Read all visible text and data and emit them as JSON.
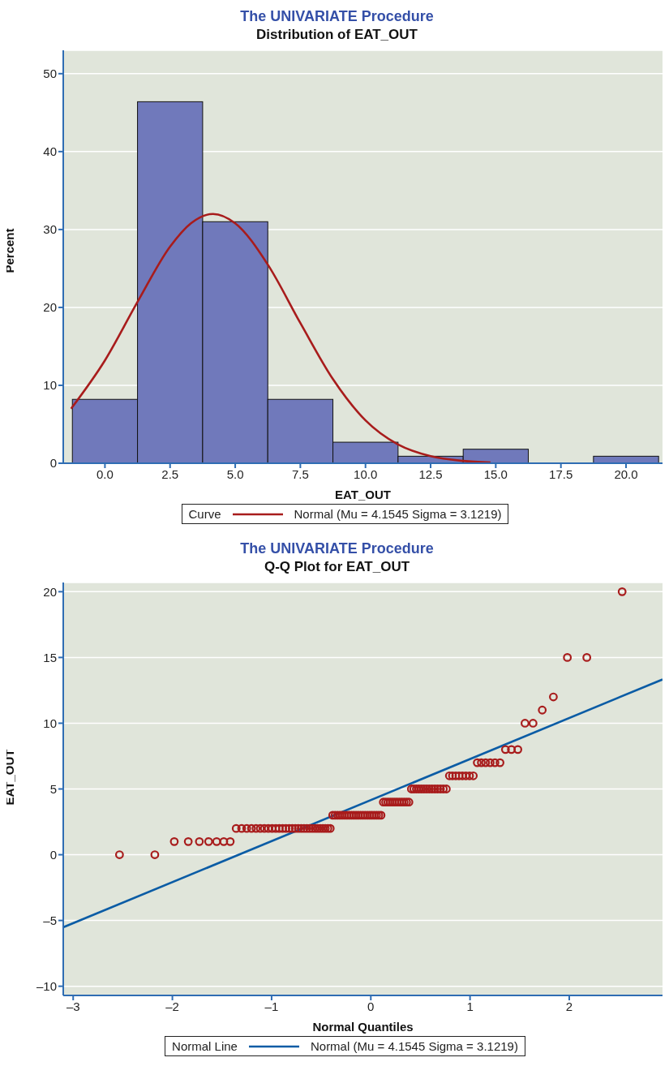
{
  "chart_data": [
    {
      "type": "histogram",
      "title": "The UNIVARIATE Procedure",
      "subtitle": "Distribution of EAT_OUT",
      "xlabel": "EAT_OUT",
      "ylabel": "Percent",
      "legend_title": "Curve",
      "bins": [
        -1.25,
        1.25,
        3.75,
        6.25,
        8.75,
        11.25,
        13.75,
        16.25,
        18.75,
        21.25
      ],
      "values": [
        8.2,
        46.4,
        31.0,
        8.2,
        2.7,
        0.9,
        1.8,
        0,
        0.9
      ],
      "color": "#7079bb",
      "xlim": [
        -1.6,
        21.4
      ],
      "xticks": [
        {
          "value": 0,
          "label": "0.0"
        },
        {
          "value": 2.5,
          "label": "2.5"
        },
        {
          "value": 5,
          "label": "5.0"
        },
        {
          "value": 7.5,
          "label": "7.5"
        },
        {
          "value": 10,
          "label": "10.0"
        },
        {
          "value": 12.5,
          "label": "12.5"
        },
        {
          "value": 15,
          "label": "15.0"
        },
        {
          "value": 17.5,
          "label": "17.5"
        },
        {
          "value": 20,
          "label": "20.0"
        }
      ],
      "ylim": [
        0,
        53
      ],
      "yticks": [
        0,
        10,
        20,
        30,
        40,
        50
      ],
      "grid": "y",
      "legend": "bottom",
      "series": [
        {
          "type": "line",
          "name": "Normal (Mu = 4.1545 Sigma = 3.1219)",
          "color": "#a81c1c",
          "x": [
            -1.3,
            0,
            1.25,
            2.5,
            3.3,
            4.15,
            5,
            6.25,
            7.5,
            8.75,
            10,
            11.25,
            12.5,
            13.75,
            14.8
          ],
          "values": [
            7.0,
            13.2,
            20.7,
            27.8,
            30.8,
            32.0,
            30.8,
            25.5,
            18.0,
            10.8,
            5.5,
            2.4,
            0.9,
            0.3,
            0.1
          ]
        }
      ]
    },
    {
      "type": "scatter",
      "title": "The UNIVARIATE Procedure",
      "subtitle": "Q-Q Plot for EAT_OUT",
      "xlabel": "Normal Quantiles",
      "ylabel": "EAT_OUT",
      "legend_title": "Normal Line",
      "xlim": [
        -3.1,
        2.94
      ],
      "xticks": [
        {
          "value": -3,
          "label": "–3"
        },
        {
          "value": -2,
          "label": "–2"
        },
        {
          "value": -1,
          "label": "–1"
        },
        0,
        1,
        2
      ],
      "ylim": [
        -10.7,
        20.7
      ],
      "yticks": [
        {
          "value": -10,
          "label": "–10"
        },
        {
          "value": -5,
          "label": "–5"
        },
        0,
        5,
        10,
        15,
        20
      ],
      "grid": "y",
      "legend": "bottom",
      "series": [
        {
          "type": "scatter",
          "color": "#a81c1c",
          "marker": "circle",
          "x": [
            -2.533,
            -2.177,
            -1.981,
            -1.84,
            -1.728,
            -1.635,
            -1.554,
            -1.482,
            -1.417,
            -1.357,
            -1.302,
            -1.251,
            -1.203,
            -1.157,
            -1.114,
            -1.073,
            -1.033,
            -0.995,
            -0.958,
            -0.923,
            -0.889,
            -0.856,
            -0.823,
            -0.792,
            -0.761,
            -0.731,
            -0.702,
            -0.673,
            -0.645,
            -0.617,
            -0.589,
            -0.562,
            -0.536,
            -0.51,
            -0.484,
            -0.459,
            -0.433,
            -0.409,
            -0.384,
            -0.36,
            -0.336,
            -0.312,
            -0.288,
            -0.264,
            -0.241,
            -0.218,
            -0.195,
            -0.172,
            -0.149,
            -0.126,
            -0.103,
            -0.08,
            -0.057,
            -0.034,
            -0.011,
            0.011,
            0.034,
            0.057,
            0.08,
            0.103,
            0.126,
            0.149,
            0.172,
            0.195,
            0.218,
            0.241,
            0.264,
            0.288,
            0.312,
            0.336,
            0.36,
            0.384,
            0.409,
            0.433,
            0.459,
            0.484,
            0.51,
            0.536,
            0.562,
            0.589,
            0.617,
            0.645,
            0.673,
            0.702,
            0.731,
            0.761,
            0.792,
            0.823,
            0.856,
            0.889,
            0.923,
            0.958,
            0.995,
            1.033,
            1.073,
            1.114,
            1.157,
            1.203,
            1.251,
            1.302,
            1.357,
            1.417,
            1.482,
            1.554,
            1.635,
            1.728,
            1.84,
            1.981,
            2.177,
            2.533
          ],
          "values": [
            0,
            0,
            1,
            1,
            1,
            1,
            1,
            1,
            1,
            2,
            2,
            2,
            2,
            2,
            2,
            2,
            2,
            2,
            2,
            2,
            2,
            2,
            2,
            2,
            2,
            2,
            2,
            2,
            2,
            2,
            2,
            2,
            2,
            2,
            2,
            2,
            2,
            2,
            3,
            3,
            3,
            3,
            3,
            3,
            3,
            3,
            3,
            3,
            3,
            3,
            3,
            3,
            3,
            3,
            3,
            3,
            3,
            3,
            3,
            3,
            4,
            4,
            4,
            4,
            4,
            4,
            4,
            4,
            4,
            4,
            4,
            4,
            5,
            5,
            5,
            5,
            5,
            5,
            5,
            5,
            5,
            5,
            5,
            5,
            5,
            5,
            6,
            6,
            6,
            6,
            6,
            6,
            6,
            6,
            7,
            7,
            7,
            7,
            7,
            7,
            8,
            8,
            8,
            10,
            10,
            11,
            12,
            15,
            15,
            20
          ]
        },
        {
          "type": "line",
          "name": "Normal (Mu = 4.1545 Sigma = 3.1219)",
          "color": "#0b5ca5",
          "x": [
            -3.1,
            2.94
          ],
          "values": [
            -5.52,
            13.33
          ]
        }
      ]
    }
  ]
}
